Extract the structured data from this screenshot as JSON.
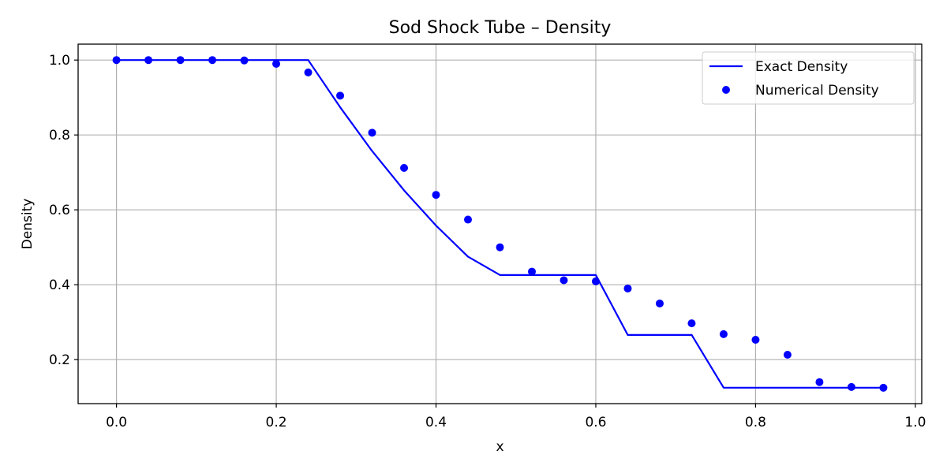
{
  "chart_data": {
    "type": "line",
    "title": "Sod Shock Tube – Density",
    "xlabel": "x",
    "ylabel": "Density",
    "xlim": [
      -0.048,
      1.008
    ],
    "ylim": [
      0.0825,
      1.0425
    ],
    "xticks": [
      0.0,
      0.2,
      0.4,
      0.6,
      0.8,
      1.0
    ],
    "xtick_labels": [
      "0.0",
      "0.2",
      "0.4",
      "0.6",
      "0.8",
      "1.0"
    ],
    "yticks": [
      0.2,
      0.4,
      0.6,
      0.8,
      1.0
    ],
    "ytick_labels": [
      "0.2",
      "0.4",
      "0.6",
      "0.8",
      "1.0"
    ],
    "grid": true,
    "legend_position": "top-right",
    "series": [
      {
        "name": "Exact Density",
        "kind": "line",
        "color": "#0000ff",
        "x": [
          0.0,
          0.04,
          0.08,
          0.12,
          0.16,
          0.2,
          0.24,
          0.28,
          0.32,
          0.36,
          0.4,
          0.44,
          0.48,
          0.52,
          0.56,
          0.6,
          0.64,
          0.68,
          0.72,
          0.76,
          0.8,
          0.84,
          0.88,
          0.92,
          0.96
        ],
        "y": [
          1.0,
          1.0,
          1.0,
          1.0,
          1.0,
          1.0,
          1.0,
          0.874,
          0.757,
          0.652,
          0.558,
          0.475,
          0.426,
          0.426,
          0.426,
          0.426,
          0.266,
          0.266,
          0.266,
          0.125,
          0.125,
          0.125,
          0.125,
          0.125,
          0.125
        ]
      },
      {
        "name": "Numerical Density",
        "kind": "scatter",
        "color": "#0000ff",
        "x": [
          0.0,
          0.04,
          0.08,
          0.12,
          0.16,
          0.2,
          0.24,
          0.28,
          0.32,
          0.36,
          0.4,
          0.44,
          0.48,
          0.52,
          0.56,
          0.6,
          0.64,
          0.68,
          0.72,
          0.76,
          0.8,
          0.84,
          0.88,
          0.92,
          0.96
        ],
        "y": [
          1.0,
          1.0,
          1.0,
          1.0,
          0.999,
          0.99,
          0.967,
          0.905,
          0.806,
          0.712,
          0.64,
          0.574,
          0.5,
          0.435,
          0.412,
          0.409,
          0.39,
          0.35,
          0.297,
          0.268,
          0.253,
          0.213,
          0.14,
          0.127,
          0.125
        ]
      }
    ]
  }
}
